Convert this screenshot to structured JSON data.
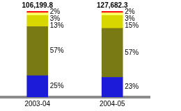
{
  "chart_data": {
    "type": "bar",
    "stacked": true,
    "data_labels": true,
    "tick_labels": "x",
    "grid": false,
    "categories": [
      "2003-04",
      "2004-05"
    ],
    "ylim": [
      0,
      100
    ],
    "totals": [
      106199.8,
      127682.3
    ],
    "total_labels": [
      "106,199.8",
      "127,682.3"
    ],
    "series": [
      {
        "color": "#1c1cd8",
        "values": [
          25,
          23
        ],
        "value_labels": [
          "25%",
          "23%"
        ]
      },
      {
        "color": "#7a7a14",
        "values": [
          57,
          57
        ],
        "value_labels": [
          "57%",
          "57%"
        ]
      },
      {
        "color": "#d8d800",
        "values": [
          13,
          15
        ],
        "value_labels": [
          "13%",
          "15%"
        ]
      },
      {
        "color": "#ffff66",
        "values": [
          3,
          3
        ],
        "value_labels": [
          "3%",
          "3%"
        ]
      },
      {
        "color": "#ff1010",
        "values": [
          2,
          2
        ],
        "value_labels": [
          "2%",
          "2%"
        ]
      }
    ]
  }
}
